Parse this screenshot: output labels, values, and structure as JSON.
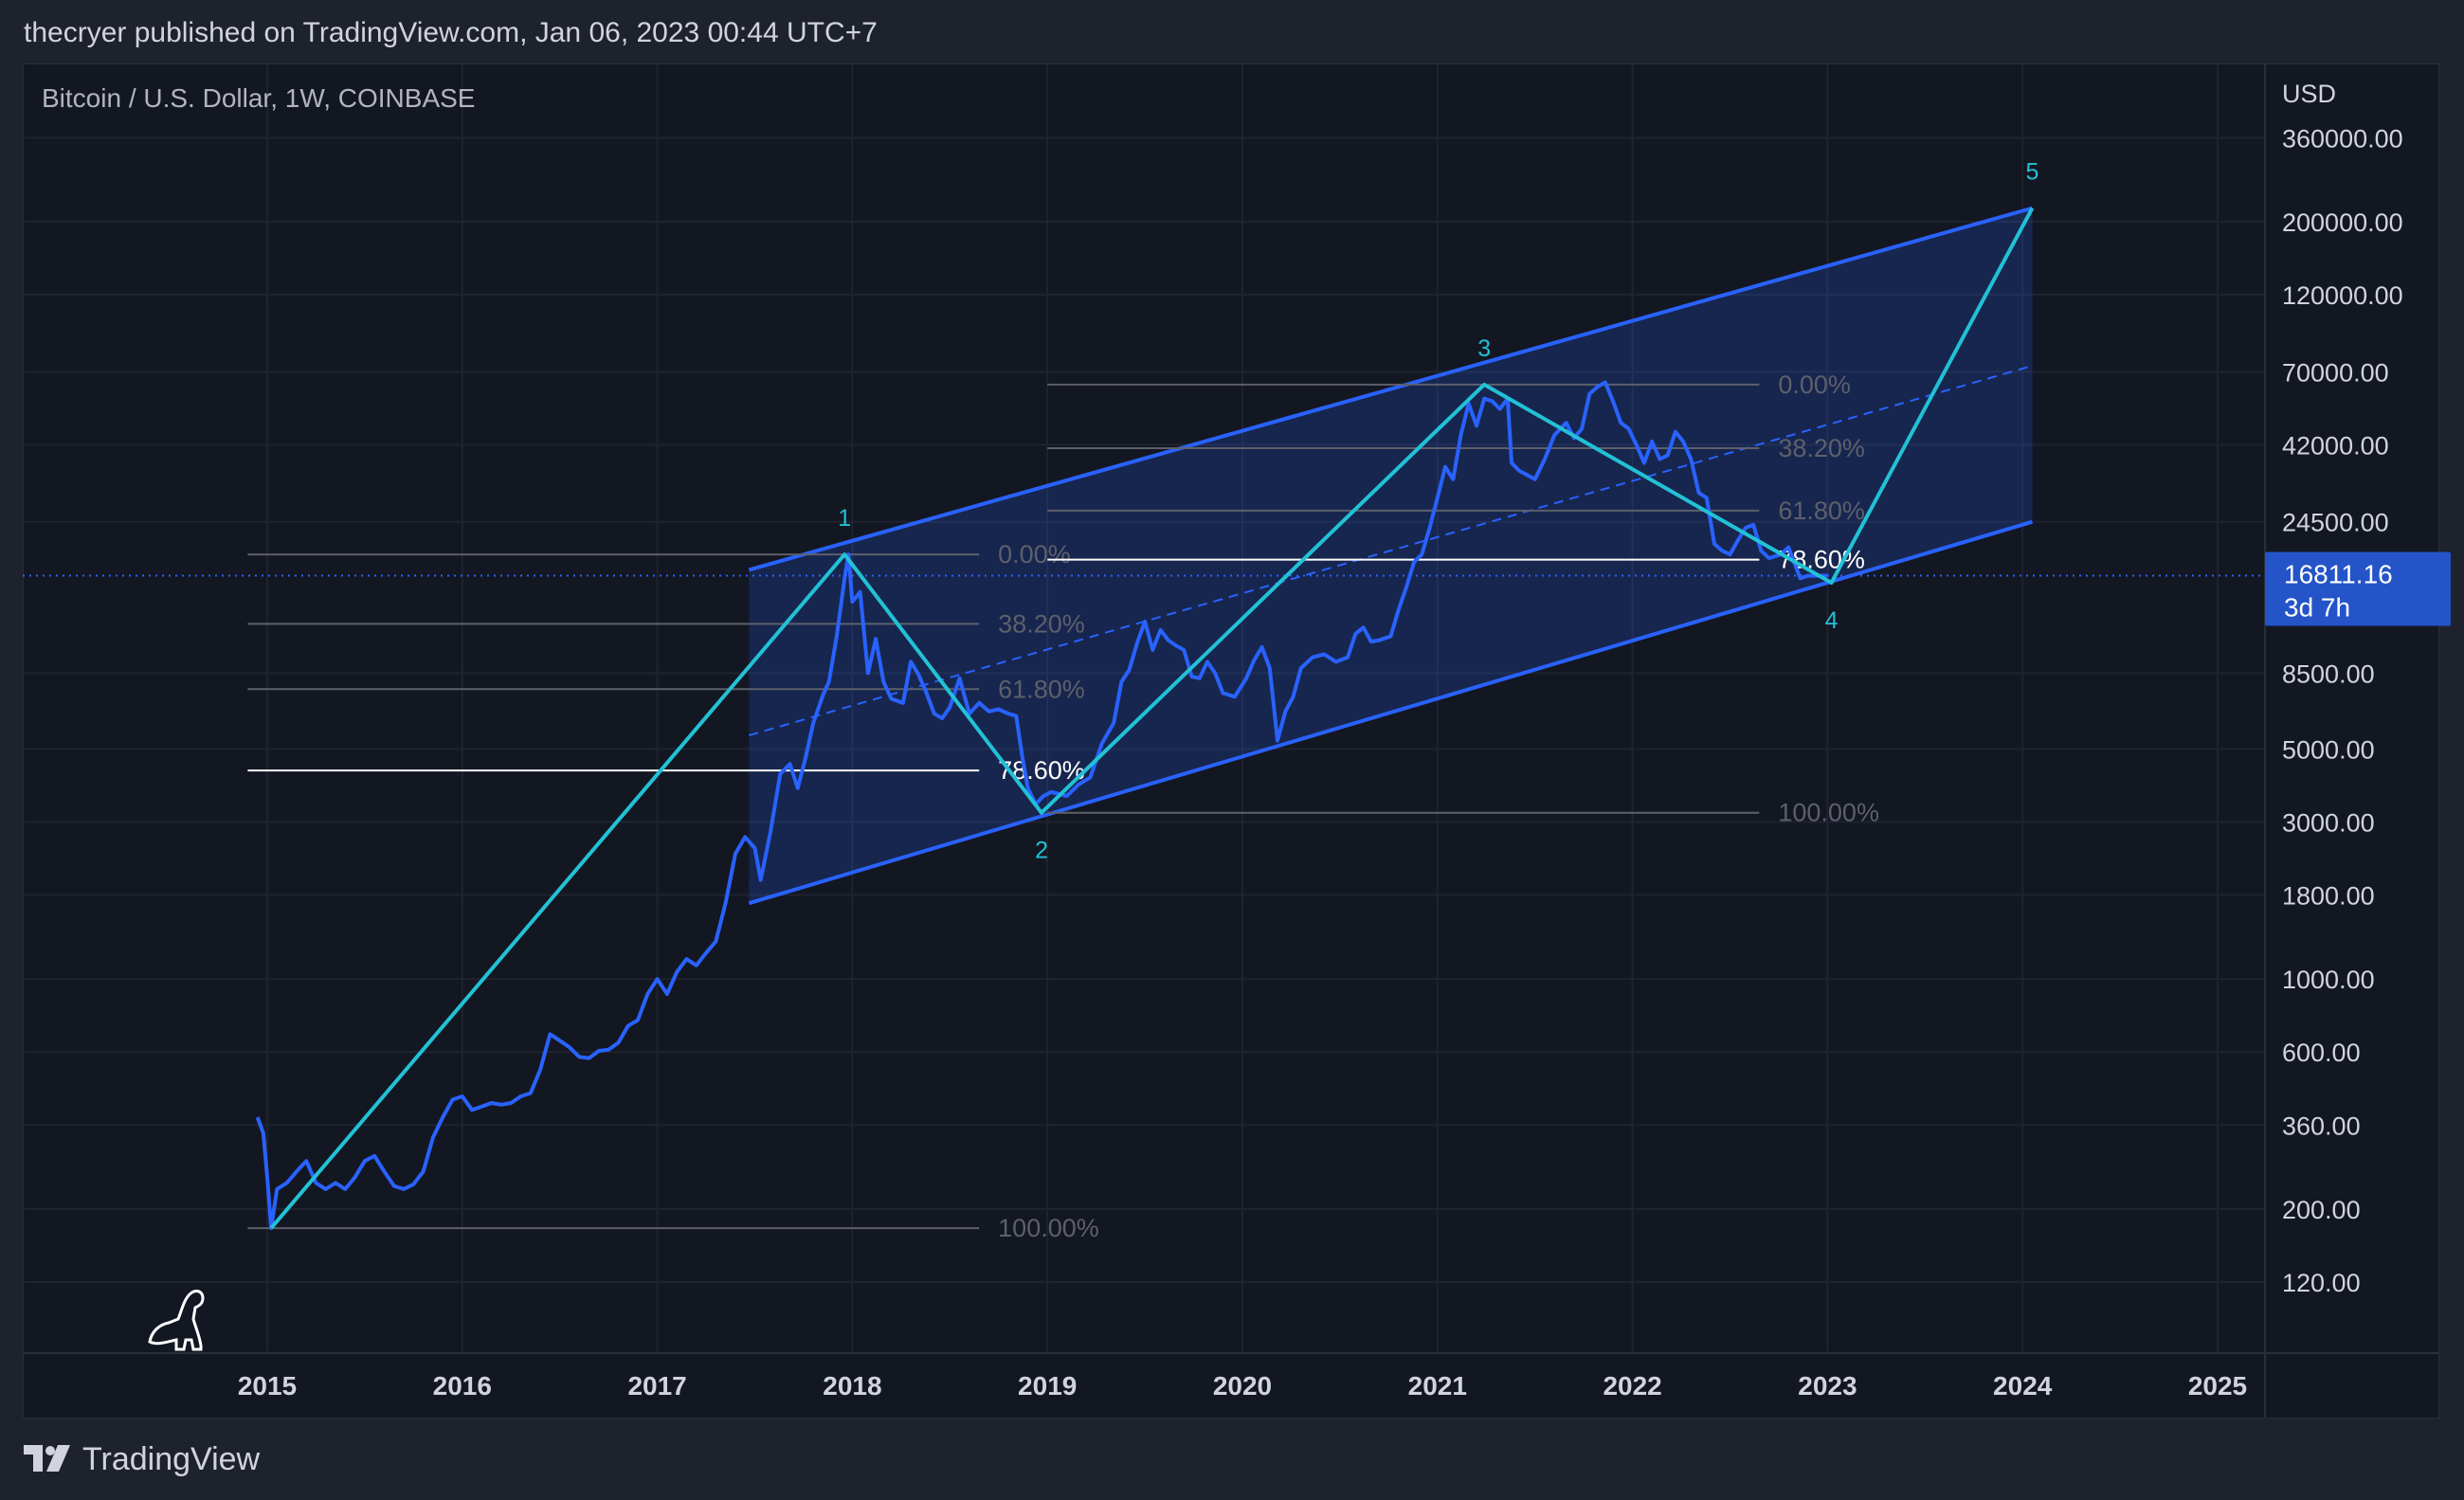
{
  "header": {
    "publisher_line": "thecryer published on TradingView.com, Jan 06, 2023 00:44 UTC+7"
  },
  "symbol": {
    "label": "Bitcoin / U.S. Dollar, 1W, COINBASE"
  },
  "footer": {
    "brand": "TradingView",
    "logo_icon": "tradingview-logo-icon"
  },
  "mascot_icon": "dinosaur-icon",
  "price_badge": {
    "price": "16811.16",
    "countdown": "3d 7h"
  },
  "colors": {
    "price_line": "#2962ff",
    "wave_line": "#22c1d6",
    "channel": "#2962ff",
    "channel_fill": "rgba(41,98,255,0.2)",
    "badge_bg": "#2454c8",
    "background": "#131722"
  },
  "chart_data": {
    "type": "line",
    "title": "Bitcoin / U.S. Dollar, 1W, COINBASE",
    "ylabel": "USD",
    "y_scale": "log",
    "ylim": [
      85,
      600000
    ],
    "xlim": [
      2014.1,
      2025.25
    ],
    "grid": true,
    "x_ticks": [
      "2015",
      "2016",
      "2017",
      "2018",
      "2019",
      "2020",
      "2021",
      "2022",
      "2023",
      "2024",
      "2025"
    ],
    "y_ticks": [
      "360000.00",
      "200000.00",
      "120000.00",
      "70000.00",
      "42000.00",
      "24500.00",
      "8500.00",
      "5000.00",
      "3000.00",
      "1800.00",
      "1000.00",
      "600.00",
      "360.00",
      "200.00",
      "120.00"
    ],
    "y_tick_values": [
      360000,
      200000,
      120000,
      70000,
      42000,
      24500,
      8500,
      5000,
      3000,
      1800,
      1000,
      600,
      360,
      200,
      120
    ],
    "x_tick_values": [
      2015,
      2016,
      2017,
      2018,
      2019,
      2020,
      2021,
      2022,
      2023,
      2024,
      2025
    ],
    "last_price": 16811.16,
    "series": [
      {
        "name": "Bitcoin / U.S. Dollar",
        "points": [
          [
            2014.95,
            380
          ],
          [
            2014.98,
            340
          ],
          [
            2015.0,
            250
          ],
          [
            2015.02,
            175
          ],
          [
            2015.05,
            230
          ],
          [
            2015.1,
            240
          ],
          [
            2015.15,
            260
          ],
          [
            2015.2,
            280
          ],
          [
            2015.25,
            240
          ],
          [
            2015.3,
            230
          ],
          [
            2015.35,
            240
          ],
          [
            2015.4,
            230
          ],
          [
            2015.45,
            250
          ],
          [
            2015.5,
            280
          ],
          [
            2015.55,
            290
          ],
          [
            2015.6,
            260
          ],
          [
            2015.65,
            235
          ],
          [
            2015.7,
            230
          ],
          [
            2015.75,
            238
          ],
          [
            2015.8,
            260
          ],
          [
            2015.85,
            330
          ],
          [
            2015.9,
            380
          ],
          [
            2015.95,
            430
          ],
          [
            2016.0,
            440
          ],
          [
            2016.05,
            400
          ],
          [
            2016.1,
            410
          ],
          [
            2016.15,
            420
          ],
          [
            2016.2,
            415
          ],
          [
            2016.25,
            420
          ],
          [
            2016.3,
            440
          ],
          [
            2016.35,
            450
          ],
          [
            2016.4,
            530
          ],
          [
            2016.45,
            680
          ],
          [
            2016.5,
            650
          ],
          [
            2016.55,
            620
          ],
          [
            2016.6,
            580
          ],
          [
            2016.65,
            575
          ],
          [
            2016.7,
            605
          ],
          [
            2016.75,
            610
          ],
          [
            2016.8,
            640
          ],
          [
            2016.85,
            720
          ],
          [
            2016.9,
            750
          ],
          [
            2016.95,
            900
          ],
          [
            2017.0,
            1000
          ],
          [
            2017.05,
            900
          ],
          [
            2017.1,
            1050
          ],
          [
            2017.15,
            1150
          ],
          [
            2017.2,
            1100
          ],
          [
            2017.25,
            1200
          ],
          [
            2017.3,
            1300
          ],
          [
            2017.35,
            1700
          ],
          [
            2017.4,
            2400
          ],
          [
            2017.45,
            2700
          ],
          [
            2017.5,
            2500
          ],
          [
            2017.53,
            2000
          ],
          [
            2017.58,
            2800
          ],
          [
            2017.63,
            4200
          ],
          [
            2017.68,
            4500
          ],
          [
            2017.72,
            3800
          ],
          [
            2017.76,
            4700
          ],
          [
            2017.8,
            6000
          ],
          [
            2017.85,
            7300
          ],
          [
            2017.88,
            8000
          ],
          [
            2017.92,
            11000
          ],
          [
            2017.96,
            16500
          ],
          [
            2017.98,
            19500
          ],
          [
            2018.0,
            14000
          ],
          [
            2018.04,
            15000
          ],
          [
            2018.08,
            8500
          ],
          [
            2018.12,
            10800
          ],
          [
            2018.16,
            8000
          ],
          [
            2018.2,
            7100
          ],
          [
            2018.26,
            6900
          ],
          [
            2018.3,
            9200
          ],
          [
            2018.34,
            8400
          ],
          [
            2018.38,
            7400
          ],
          [
            2018.42,
            6400
          ],
          [
            2018.46,
            6200
          ],
          [
            2018.5,
            6700
          ],
          [
            2018.55,
            8200
          ],
          [
            2018.6,
            6400
          ],
          [
            2018.65,
            6900
          ],
          [
            2018.7,
            6500
          ],
          [
            2018.75,
            6600
          ],
          [
            2018.8,
            6400
          ],
          [
            2018.84,
            6300
          ],
          [
            2018.87,
            4800
          ],
          [
            2018.9,
            3800
          ],
          [
            2018.94,
            3400
          ],
          [
            2018.98,
            3600
          ],
          [
            2019.02,
            3700
          ],
          [
            2019.1,
            3600
          ],
          [
            2019.16,
            3900
          ],
          [
            2019.22,
            4100
          ],
          [
            2019.28,
            5200
          ],
          [
            2019.34,
            6000
          ],
          [
            2019.38,
            8000
          ],
          [
            2019.42,
            8700
          ],
          [
            2019.46,
            10500
          ],
          [
            2019.5,
            12200
          ],
          [
            2019.54,
            10000
          ],
          [
            2019.58,
            11500
          ],
          [
            2019.62,
            10700
          ],
          [
            2019.66,
            10300
          ],
          [
            2019.7,
            10000
          ],
          [
            2019.74,
            8300
          ],
          [
            2019.78,
            8200
          ],
          [
            2019.82,
            9200
          ],
          [
            2019.86,
            8500
          ],
          [
            2019.9,
            7400
          ],
          [
            2019.96,
            7200
          ],
          [
            2020.02,
            8200
          ],
          [
            2020.06,
            9300
          ],
          [
            2020.1,
            10200
          ],
          [
            2020.14,
            8800
          ],
          [
            2020.18,
            5300
          ],
          [
            2020.22,
            6500
          ],
          [
            2020.26,
            7200
          ],
          [
            2020.3,
            8800
          ],
          [
            2020.36,
            9500
          ],
          [
            2020.42,
            9700
          ],
          [
            2020.48,
            9200
          ],
          [
            2020.54,
            9500
          ],
          [
            2020.58,
            11200
          ],
          [
            2020.62,
            11700
          ],
          [
            2020.66,
            10600
          ],
          [
            2020.7,
            10700
          ],
          [
            2020.76,
            11000
          ],
          [
            2020.8,
            13200
          ],
          [
            2020.84,
            15500
          ],
          [
            2020.88,
            18500
          ],
          [
            2020.92,
            19500
          ],
          [
            2020.96,
            23500
          ],
          [
            2021.0,
            29000
          ],
          [
            2021.04,
            36000
          ],
          [
            2021.08,
            33000
          ],
          [
            2021.12,
            45000
          ],
          [
            2021.16,
            56000
          ],
          [
            2021.2,
            48000
          ],
          [
            2021.24,
            58000
          ],
          [
            2021.28,
            57000
          ],
          [
            2021.32,
            54000
          ],
          [
            2021.36,
            58000
          ],
          [
            2021.38,
            37000
          ],
          [
            2021.42,
            35000
          ],
          [
            2021.46,
            34000
          ],
          [
            2021.5,
            33000
          ],
          [
            2021.55,
            38000
          ],
          [
            2021.6,
            45000
          ],
          [
            2021.66,
            49000
          ],
          [
            2021.7,
            44000
          ],
          [
            2021.74,
            47000
          ],
          [
            2021.78,
            60000
          ],
          [
            2021.82,
            63000
          ],
          [
            2021.86,
            65000
          ],
          [
            2021.9,
            57000
          ],
          [
            2021.94,
            49000
          ],
          [
            2021.98,
            47000
          ],
          [
            2022.02,
            42000
          ],
          [
            2022.06,
            37000
          ],
          [
            2022.1,
            43000
          ],
          [
            2022.14,
            38000
          ],
          [
            2022.18,
            39000
          ],
          [
            2022.22,
            46000
          ],
          [
            2022.26,
            43000
          ],
          [
            2022.3,
            38000
          ],
          [
            2022.34,
            30000
          ],
          [
            2022.38,
            29000
          ],
          [
            2022.42,
            21000
          ],
          [
            2022.46,
            20000
          ],
          [
            2022.5,
            19500
          ],
          [
            2022.54,
            21500
          ],
          [
            2022.58,
            23500
          ],
          [
            2022.62,
            24000
          ],
          [
            2022.66,
            20000
          ],
          [
            2022.7,
            19000
          ],
          [
            2022.76,
            19500
          ],
          [
            2022.8,
            20500
          ],
          [
            2022.86,
            16500
          ],
          [
            2022.9,
            16800
          ],
          [
            2022.95,
            16800
          ],
          [
            2023.0,
            16811
          ]
        ]
      }
    ],
    "waves": {
      "labels": [
        "1",
        "2",
        "3",
        "4",
        "5"
      ],
      "points": [
        [
          2015.02,
          175
        ],
        [
          2017.96,
          19500
        ],
        [
          2018.97,
          3200
        ],
        [
          2021.24,
          64000
        ],
        [
          2023.02,
          16000
        ],
        [
          2024.05,
          220000
        ]
      ]
    },
    "channel": {
      "upper": [
        [
          2017.47,
          17500
        ],
        [
          2024.05,
          220000
        ]
      ],
      "lower": [
        [
          2017.47,
          1700
        ],
        [
          2024.05,
          24500
        ]
      ],
      "median": [
        [
          2017.47,
          5500
        ],
        [
          2024.05,
          73000
        ]
      ]
    },
    "fib_levels": [
      {
        "range": [
          2014.9,
          2018.65
        ],
        "levels": [
          {
            "label": "0.00%",
            "value": 19500,
            "highlight": false
          },
          {
            "label": "38.20%",
            "value": 12000,
            "highlight": false
          },
          {
            "label": "61.80%",
            "value": 7600,
            "highlight": false
          },
          {
            "label": "78.60%",
            "value": 4300,
            "highlight": true
          },
          {
            "label": "100.00%",
            "value": 175,
            "highlight": false
          }
        ]
      },
      {
        "range": [
          2019.0,
          2022.65
        ],
        "levels": [
          {
            "label": "0.00%",
            "value": 64000,
            "highlight": false
          },
          {
            "label": "38.20%",
            "value": 41000,
            "highlight": false
          },
          {
            "label": "61.80%",
            "value": 26500,
            "highlight": false
          },
          {
            "label": "78.60%",
            "value": 18800,
            "highlight": true
          },
          {
            "label": "100.00%",
            "value": 3200,
            "highlight": false
          }
        ]
      }
    ]
  }
}
